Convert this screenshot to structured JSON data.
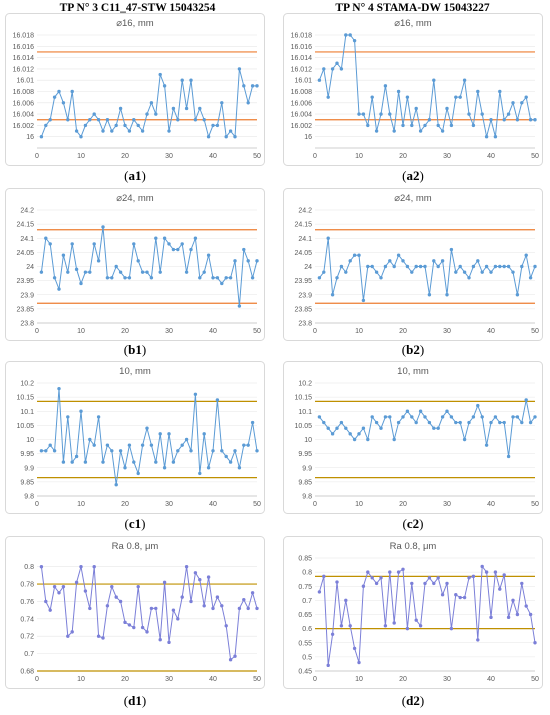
{
  "columns": {
    "left_title": "TP N° 3 C11_47-STW 15043254",
    "right_title": "TP N° 4 STAMA-DW 15043227"
  },
  "colors": {
    "limit_red": "#ed7d31",
    "limit_gold": "#bf9000",
    "series_blue": "#5b9bd5",
    "series_purple": "#7b7fd8"
  },
  "chart_data": [
    {
      "id": "a1",
      "caption_letter": "a",
      "caption_index": "1",
      "type": "line",
      "title": "⌀16, mm",
      "ylim": [
        15.998,
        16.018
      ],
      "y_ticks": [
        16,
        16.002,
        16.004,
        16.006,
        16.008,
        16.01,
        16.012,
        16.014,
        16.016,
        16.018
      ],
      "x_ticks": [
        0,
        10,
        20,
        30,
        40,
        50
      ],
      "limits": [
        16.015,
        16.003
      ],
      "limit_color": "#ed7d31",
      "series_color": "#5b9bd5",
      "series": [
        {
          "x": [
            1,
            2,
            3,
            4,
            5,
            6,
            7,
            8,
            9,
            10,
            11,
            12,
            13,
            14,
            15,
            16,
            17,
            18,
            19,
            20,
            21,
            22,
            23,
            24,
            25,
            26,
            27,
            28,
            29,
            30,
            31,
            32,
            33,
            34,
            35,
            36,
            37,
            38,
            39,
            40,
            41,
            42,
            43,
            44,
            45,
            46,
            47,
            48,
            49,
            50
          ],
          "values": [
            16,
            16.002,
            16.003,
            16.007,
            16.008,
            16.006,
            16.003,
            16.008,
            16.001,
            16,
            16.002,
            16.003,
            16.004,
            16.003,
            16.001,
            16.003,
            16.001,
            16.002,
            16.005,
            16.002,
            16.001,
            16.003,
            16.002,
            16.001,
            16.004,
            16.006,
            16.004,
            16.011,
            16.009,
            16.001,
            16.005,
            16.003,
            16.01,
            16.005,
            16.01,
            16.003,
            16.005,
            16.003,
            16,
            16.002,
            16.002,
            16.006,
            16,
            16.001,
            16,
            16.012,
            16.009,
            16.006,
            16.009,
            16.009
          ]
        }
      ]
    },
    {
      "id": "a2",
      "caption_letter": "a",
      "caption_index": "2",
      "type": "line",
      "title": "⌀16, mm",
      "ylim": [
        15.998,
        16.018
      ],
      "y_ticks": [
        16,
        16.002,
        16.004,
        16.006,
        16.008,
        16.01,
        16.012,
        16.014,
        16.016,
        16.018
      ],
      "x_ticks": [
        0,
        10,
        20,
        30,
        40,
        50
      ],
      "limits": [
        16.015,
        16.003
      ],
      "limit_color": "#ed7d31",
      "series_color": "#5b9bd5",
      "series": [
        {
          "x": [
            1,
            2,
            3,
            4,
            5,
            6,
            7,
            8,
            9,
            10,
            11,
            12,
            13,
            14,
            15,
            16,
            17,
            18,
            19,
            20,
            21,
            22,
            23,
            24,
            25,
            26,
            27,
            28,
            29,
            30,
            31,
            32,
            33,
            34,
            35,
            36,
            37,
            38,
            39,
            40,
            41,
            42,
            43,
            44,
            45,
            46,
            47,
            48,
            49,
            50
          ],
          "values": [
            16.01,
            16.012,
            16.007,
            16.012,
            16.013,
            16.012,
            16.018,
            16.018,
            16.017,
            16.004,
            16.004,
            16.002,
            16.007,
            16.001,
            16.004,
            16.009,
            16.004,
            16.001,
            16.008,
            16.002,
            16.007,
            16.002,
            16.005,
            16.001,
            16.002,
            16.003,
            16.01,
            16.002,
            16.001,
            16.005,
            16.002,
            16.007,
            16.007,
            16.01,
            16.004,
            16.002,
            16.008,
            16.004,
            16,
            16.003,
            16,
            16.008,
            16.003,
            16.004,
            16.006,
            16.003,
            16.006,
            16.007,
            16.003,
            16.003
          ]
        }
      ]
    },
    {
      "id": "b1",
      "caption_letter": "b",
      "caption_index": "1",
      "type": "line",
      "title": "⌀24, mm",
      "ylim": [
        23.8,
        24.2
      ],
      "y_ticks": [
        23.8,
        23.85,
        23.9,
        23.95,
        24,
        24.05,
        24.1,
        24.15,
        24.2
      ],
      "x_ticks": [
        0,
        10,
        20,
        30,
        40,
        50
      ],
      "limits": [
        24.13,
        23.87
      ],
      "limit_color": "#ed7d31",
      "series_color": "#5b9bd5",
      "series": [
        {
          "x": [
            1,
            2,
            3,
            4,
            5,
            6,
            7,
            8,
            9,
            10,
            11,
            12,
            13,
            14,
            15,
            16,
            17,
            18,
            19,
            20,
            21,
            22,
            23,
            24,
            25,
            26,
            27,
            28,
            29,
            30,
            31,
            32,
            33,
            34,
            35,
            36,
            37,
            38,
            39,
            40,
            41,
            42,
            43,
            44,
            45,
            46,
            47,
            48,
            49,
            50
          ],
          "values": [
            23.98,
            24.1,
            24.08,
            23.96,
            23.92,
            24.04,
            23.98,
            24.08,
            23.99,
            23.94,
            23.98,
            23.98,
            24.08,
            24.02,
            24.14,
            23.96,
            23.96,
            24,
            23.98,
            23.96,
            23.96,
            24.08,
            24.02,
            23.98,
            23.98,
            23.96,
            24.1,
            23.98,
            24.1,
            24.08,
            24.06,
            24.06,
            24.08,
            23.98,
            24.06,
            24.1,
            23.96,
            23.98,
            24.04,
            23.96,
            23.96,
            23.94,
            23.96,
            23.96,
            24.02,
            23.86,
            24.06,
            24.02,
            23.96,
            24.02
          ]
        }
      ]
    },
    {
      "id": "b2",
      "caption_letter": "b",
      "caption_index": "2",
      "type": "line",
      "title": "⌀24, mm",
      "ylim": [
        23.8,
        24.2
      ],
      "y_ticks": [
        23.8,
        23.85,
        23.9,
        23.95,
        24,
        24.05,
        24.1,
        24.15,
        24.2
      ],
      "x_ticks": [
        0,
        10,
        20,
        30,
        40,
        50
      ],
      "limits": [
        24.13,
        23.87
      ],
      "limit_color": "#ed7d31",
      "series_color": "#5b9bd5",
      "series": [
        {
          "x": [
            1,
            2,
            3,
            4,
            5,
            6,
            7,
            8,
            9,
            10,
            11,
            12,
            13,
            14,
            15,
            16,
            17,
            18,
            19,
            20,
            21,
            22,
            23,
            24,
            25,
            26,
            27,
            28,
            29,
            30,
            31,
            32,
            33,
            34,
            35,
            36,
            37,
            38,
            39,
            40,
            41,
            42,
            43,
            44,
            45,
            46,
            47,
            48,
            49,
            50
          ],
          "values": [
            23.96,
            23.98,
            24.1,
            23.9,
            23.96,
            24,
            23.98,
            24.02,
            24.04,
            24.04,
            23.88,
            24,
            24,
            23.98,
            23.96,
            24,
            24.02,
            24,
            24.04,
            24.02,
            24,
            23.98,
            24,
            24,
            24,
            23.9,
            24.02,
            24,
            24.02,
            23.9,
            24.06,
            23.98,
            24,
            23.98,
            23.96,
            24,
            24.02,
            23.98,
            24,
            23.98,
            24,
            24,
            24,
            24,
            23.98,
            23.9,
            24,
            24.04,
            23.96,
            24
          ]
        }
      ]
    },
    {
      "id": "c1",
      "caption_letter": "c",
      "caption_index": "1",
      "type": "line",
      "title": "10, mm",
      "ylim": [
        9.8,
        10.2
      ],
      "y_ticks": [
        9.8,
        9.85,
        9.9,
        9.95,
        10,
        10.05,
        10.1,
        10.15,
        10.2
      ],
      "x_ticks": [
        0,
        10,
        20,
        30,
        40,
        50
      ],
      "limits": [
        10.135,
        9.865
      ],
      "limit_color": "#bf9000",
      "series_color": "#5b9bd5",
      "series": [
        {
          "x": [
            1,
            2,
            3,
            4,
            5,
            6,
            7,
            8,
            9,
            10,
            11,
            12,
            13,
            14,
            15,
            16,
            17,
            18,
            19,
            20,
            21,
            22,
            23,
            24,
            25,
            26,
            27,
            28,
            29,
            30,
            31,
            32,
            33,
            34,
            35,
            36,
            37,
            38,
            39,
            40,
            41,
            42,
            43,
            44,
            45,
            46,
            47,
            48,
            49,
            50
          ],
          "values": [
            9.96,
            9.96,
            9.98,
            9.96,
            10.18,
            9.92,
            10.08,
            9.92,
            9.94,
            10.1,
            9.92,
            10,
            9.98,
            10.08,
            9.92,
            9.98,
            9.96,
            9.84,
            9.96,
            9.9,
            9.98,
            9.92,
            9.88,
            9.98,
            10.04,
            9.98,
            9.92,
            10.02,
            9.9,
            10.02,
            9.92,
            9.96,
            9.98,
            10,
            9.96,
            10.16,
            9.88,
            10.02,
            9.9,
            9.96,
            10.14,
            9.96,
            9.94,
            9.92,
            9.96,
            9.9,
            9.98,
            9.98,
            10.06,
            9.96
          ]
        }
      ]
    },
    {
      "id": "c2",
      "caption_letter": "c",
      "caption_index": "2",
      "type": "line",
      "title": "10, mm",
      "ylim": [
        9.8,
        10.2
      ],
      "y_ticks": [
        9.8,
        9.85,
        9.9,
        9.95,
        10,
        10.05,
        10.1,
        10.15,
        10.2
      ],
      "x_ticks": [
        0,
        10,
        20,
        30,
        40,
        50
      ],
      "limits": [
        10.135,
        9.865
      ],
      "limit_color": "#bf9000",
      "series_color": "#5b9bd5",
      "series": [
        {
          "x": [
            1,
            2,
            3,
            4,
            5,
            6,
            7,
            8,
            9,
            10,
            11,
            12,
            13,
            14,
            15,
            16,
            17,
            18,
            19,
            20,
            21,
            22,
            23,
            24,
            25,
            26,
            27,
            28,
            29,
            30,
            31,
            32,
            33,
            34,
            35,
            36,
            37,
            38,
            39,
            40,
            41,
            42,
            43,
            44,
            45,
            46,
            47,
            48,
            49,
            50
          ],
          "values": [
            10.08,
            10.06,
            10.04,
            10.02,
            10.04,
            10.06,
            10.04,
            10.02,
            10,
            10.02,
            10.04,
            10,
            10.08,
            10.06,
            10.04,
            10.08,
            10.08,
            10,
            10.06,
            10.08,
            10.1,
            10.08,
            10.06,
            10.1,
            10.08,
            10.06,
            10.04,
            10.04,
            10.08,
            10.1,
            10.08,
            10.06,
            10.06,
            10,
            10.06,
            10.08,
            10.12,
            10.08,
            9.98,
            10.06,
            10.08,
            10.06,
            10.06,
            9.94,
            10.08,
            10.08,
            10.06,
            10.14,
            10.06,
            10.08
          ]
        }
      ]
    },
    {
      "id": "d1",
      "caption_letter": "d",
      "caption_index": "1",
      "type": "line",
      "title": "Ra 0.8, μm",
      "ylim": [
        0.68,
        0.81
      ],
      "y_ticks": [
        0.68,
        0.7,
        0.72,
        0.74,
        0.76,
        0.78,
        0.8
      ],
      "x_ticks": [
        0,
        10,
        20,
        30,
        40,
        50
      ],
      "limits": [
        0.78,
        0.68
      ],
      "limit_color": "#bf9000",
      "series_color": "#7b7fd8",
      "series": [
        {
          "x": [
            1,
            2,
            3,
            4,
            5,
            6,
            7,
            8,
            9,
            10,
            11,
            12,
            13,
            14,
            15,
            16,
            17,
            18,
            19,
            20,
            21,
            22,
            23,
            24,
            25,
            26,
            27,
            28,
            29,
            30,
            31,
            32,
            33,
            34,
            35,
            36,
            37,
            38,
            39,
            40,
            41,
            42,
            43,
            44,
            45,
            46,
            47,
            48,
            49,
            50
          ],
          "values": [
            0.8,
            0.76,
            0.75,
            0.777,
            0.77,
            0.777,
            0.72,
            0.725,
            0.782,
            0.8,
            0.772,
            0.752,
            0.8,
            0.72,
            0.718,
            0.755,
            0.777,
            0.765,
            0.76,
            0.736,
            0.733,
            0.73,
            0.777,
            0.73,
            0.725,
            0.752,
            0.752,
            0.716,
            0.782,
            0.713,
            0.75,
            0.74,
            0.765,
            0.8,
            0.76,
            0.793,
            0.785,
            0.755,
            0.788,
            0.752,
            0.765,
            0.755,
            0.732,
            0.693,
            0.697,
            0.752,
            0.762,
            0.752,
            0.77,
            0.752
          ]
        }
      ]
    },
    {
      "id": "d2",
      "caption_letter": "d",
      "caption_index": "2",
      "type": "line",
      "title": "Ra 0.8, μm",
      "ylim": [
        0.45,
        0.85
      ],
      "y_ticks": [
        0.45,
        0.5,
        0.55,
        0.6,
        0.65,
        0.7,
        0.75,
        0.8,
        0.85
      ],
      "x_ticks": [
        0,
        10,
        20,
        30,
        40,
        50
      ],
      "limits": [
        0.785,
        0.6
      ],
      "limit_color": "#bf9000",
      "series_color": "#7b7fd8",
      "series": [
        {
          "x": [
            1,
            2,
            3,
            4,
            5,
            6,
            7,
            8,
            9,
            10,
            11,
            12,
            13,
            14,
            15,
            16,
            17,
            18,
            19,
            20,
            21,
            22,
            23,
            24,
            25,
            26,
            27,
            28,
            29,
            30,
            31,
            32,
            33,
            34,
            35,
            36,
            37,
            38,
            39,
            40,
            41,
            42,
            43,
            44,
            45,
            46,
            47,
            48,
            49,
            50
          ],
          "values": [
            0.73,
            0.785,
            0.47,
            0.58,
            0.765,
            0.61,
            0.7,
            0.61,
            0.53,
            0.48,
            0.75,
            0.8,
            0.78,
            0.76,
            0.78,
            0.61,
            0.8,
            0.62,
            0.8,
            0.81,
            0.6,
            0.76,
            0.63,
            0.61,
            0.76,
            0.78,
            0.76,
            0.78,
            0.72,
            0.76,
            0.6,
            0.72,
            0.71,
            0.71,
            0.78,
            0.785,
            0.56,
            0.82,
            0.8,
            0.64,
            0.8,
            0.74,
            0.79,
            0.64,
            0.7,
            0.65,
            0.76,
            0.68,
            0.65,
            0.55
          ]
        }
      ]
    }
  ]
}
